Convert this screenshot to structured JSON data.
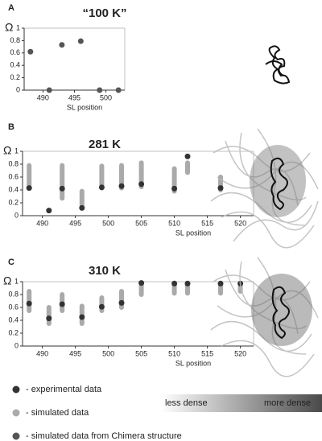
{
  "chart_data": [
    {
      "type": "scatter",
      "panel": "A",
      "title": "“100 K”",
      "ylabel": "Ω",
      "xlabel": "SL position",
      "x": [
        488,
        491,
        493,
        496,
        499,
        502
      ],
      "series": [
        {
          "color": "#555555",
          "values": [
            0.62,
            0,
            0.73,
            0.79,
            0,
            0
          ]
        }
      ],
      "xlim": [
        487,
        503
      ],
      "xticks": [
        490,
        495,
        500
      ],
      "ylim": [
        0,
        1
      ],
      "yticks": [
        0,
        0.2,
        0.4,
        0.6,
        0.8,
        1
      ]
    },
    {
      "type": "scatter",
      "panel": "B",
      "title": "281 K",
      "ylabel": "Ω",
      "xlabel": "SL position",
      "x": [
        488,
        491,
        493,
        496,
        499,
        502,
        505,
        510,
        512,
        517
      ],
      "series": [
        {
          "color": "#aaaaaa",
          "low": [
            0.47,
            null,
            0.27,
            0.15,
            0.43,
            0.43,
            0.45,
            0.38,
            0.67,
            0.4
          ],
          "high": [
            0.78,
            null,
            0.78,
            0.38,
            0.77,
            0.78,
            0.82,
            0.73,
            0.82,
            0.6
          ]
        },
        {
          "color": "#333333",
          "values": [
            0.43,
            0.08,
            0.42,
            0.12,
            0.44,
            0.46,
            0.49,
            0.42,
            0.92,
            0.43
          ]
        }
      ],
      "xlim": [
        487,
        522
      ],
      "xticks": [
        490,
        495,
        500,
        505,
        510,
        515,
        520
      ],
      "ylim": [
        0,
        1
      ],
      "yticks": [
        0,
        0.2,
        0.4,
        0.6,
        0.8,
        1
      ]
    },
    {
      "type": "scatter",
      "panel": "C",
      "title": "310 K",
      "ylabel": "Ω",
      "xlabel": "SL position",
      "x": [
        488,
        491,
        493,
        496,
        499,
        502,
        505,
        510,
        512,
        517,
        520
      ],
      "series": [
        {
          "color": "#aaaaaa",
          "low": [
            0.55,
            0.35,
            0.55,
            0.35,
            0.55,
            0.6,
            0.8,
            0.82,
            0.82,
            0.82,
            0.85
          ],
          "high": [
            0.85,
            0.6,
            0.8,
            0.62,
            0.75,
            0.85,
            0.98,
            0.98,
            0.98,
            0.98,
            0.98
          ]
        },
        {
          "color": "#333333",
          "values": [
            0.66,
            0.43,
            0.65,
            0.45,
            0.61,
            0.67,
            0.98,
            0.97,
            0.97,
            0.97,
            0.97
          ]
        }
      ],
      "xlim": [
        487,
        522
      ],
      "xticks": [
        490,
        495,
        500,
        505,
        510,
        515,
        520
      ],
      "ylim": [
        0,
        1
      ],
      "yticks": [
        0,
        0.2,
        0.4,
        0.6,
        0.8,
        1
      ]
    }
  ],
  "legend": {
    "items": [
      {
        "label": "- experimental data",
        "color": "#333333"
      },
      {
        "label": "- simulated data",
        "color": "#aaaaaa"
      },
      {
        "label": "- simulated data from Chimera structure",
        "color": "#555555"
      }
    ]
  },
  "density_bar": {
    "low_label": "less dense",
    "high_label": "more dense"
  }
}
